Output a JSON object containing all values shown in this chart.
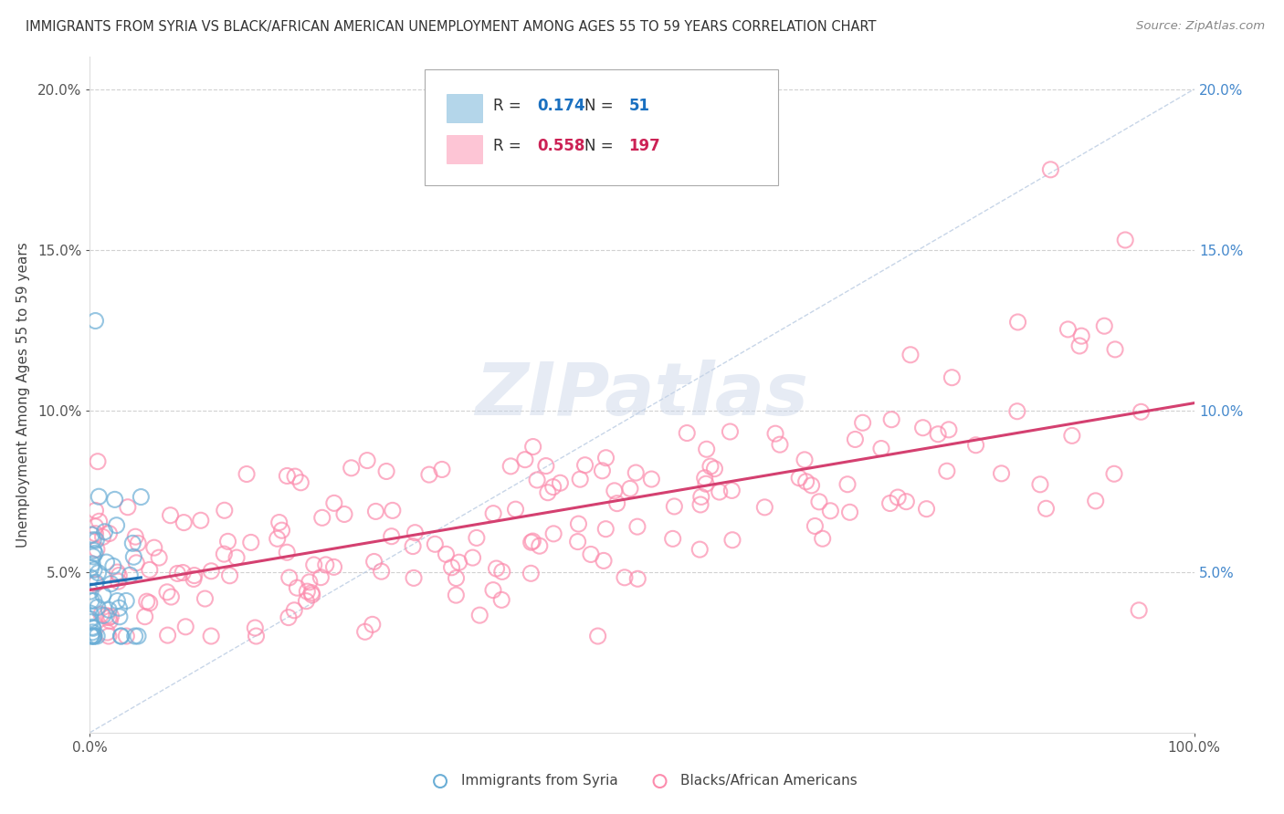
{
  "title": "IMMIGRANTS FROM SYRIA VS BLACK/AFRICAN AMERICAN UNEMPLOYMENT AMONG AGES 55 TO 59 YEARS CORRELATION CHART",
  "source": "Source: ZipAtlas.com",
  "ylabel": "Unemployment Among Ages 55 to 59 years",
  "xlim": [
    0,
    100
  ],
  "ylim": [
    0,
    21
  ],
  "ytick_vals": [
    5,
    10,
    15,
    20
  ],
  "ytick_labels": [
    "5.0%",
    "10.0%",
    "15.0%",
    "20.0%"
  ],
  "watermark": "ZIPatlas",
  "legend_entries": [
    {
      "label": "Immigrants from Syria",
      "R": "0.174",
      "N": "51",
      "color": "#6baed6"
    },
    {
      "label": "Blacks/African Americans",
      "R": "0.558",
      "N": "197",
      "color": "#fc8cad"
    }
  ],
  "syria_color": "#6baed6",
  "black_color": "#fc8cad",
  "syria_trend_color": "#2171b5",
  "black_trend_color": "#d44070",
  "diagonal_color": "#b0c4de",
  "background_color": "#ffffff",
  "grid_color": "#cccccc",
  "title_color": "#333333",
  "legend_R_syria_color": "#1a70c0",
  "legend_N_syria_color": "#1a70c0",
  "legend_R_black_color": "#cc2255",
  "legend_N_black_color": "#cc2255"
}
